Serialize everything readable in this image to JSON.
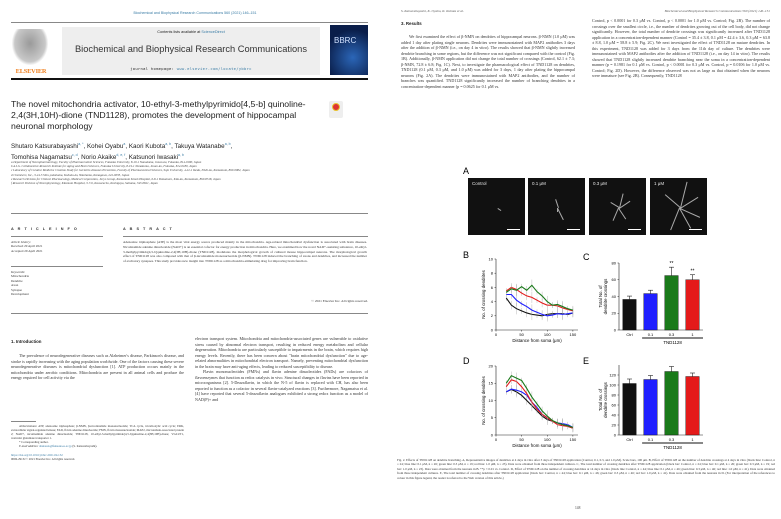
{
  "left_page": {
    "running_header": "Biochemical and Biophysical Research Communications 560 (2021) 146–151",
    "contents_prefix": "Contents lists available at ",
    "contents_link": "ScienceDirect",
    "journal_title": "Biochemical and Biophysical Research Communications",
    "homepage_prefix": "journal homepage: ",
    "homepage_link": "www.elsevier.com/locate/ybbrc",
    "publisher_logo": "ELSEVIER",
    "cover_text": "BBRC",
    "article_title": "The novel mitochondria activator, 10-ethyl-3-methylpyrimido[4,5-b] quinoline-2,4(3H,10H)-dione (TND1128), promotes the development of hippocampal neuronal morphology",
    "authors": [
      {
        "name": "Shutaro Katsurabayashi",
        "sup": "a, *"
      },
      {
        "name": "Kohei Oyabu",
        "sup": "a"
      },
      {
        "name": "Kaori Kubota",
        "sup": "a, b"
      },
      {
        "name": "Takuya Watanabe",
        "sup": "a, b"
      },
      {
        "name": "Tomohisa Nagamatsu",
        "sup": "c, d"
      },
      {
        "name": "Norio Akaike",
        "sup": "d, e, f"
      },
      {
        "name": "Katsunori Iwasaki",
        "sup": "a, b"
      }
    ],
    "affiliations": [
      "a Department of Neuropharmacology, Faculty of Pharmaceutical Sciences, Fukuoka University, 8-19-1 Nanakuma, Jonan-ku, Fukuoka, 814-0180, Japan",
      "b A.I.G. Collaborative Research Institute for Aging and Brain Sciences, Fukuoka University, 8-19-1 Nanakuma, Jonan-ku, Fukuoka, 814-0180, Japan",
      "c Laboratory of Curative Medicine Creation Study for Geriatric-diseases Prevention, Faculty of Pharmaceutical Sciences, Sojo University, 4-22-1 Ikeda, Nishi-ku, Kumamoto, 860-0082, Japan",
      "d Chemiserv, Inc., 3-24-5 Shin-yokohama, Kohoku-ku, Yokohama, Kanagawa, 222-0033, Japan",
      "e Research Division for Clinical Pharmacology, Medical Corporation, Juryo Group, Kumamoto Kinoh Hospital, 6-8-1 Yamamuro, Kita-ku, Kumamoto, 860-8518, Japan",
      "f Research Division of Neurophysiology, Kitamoto Hospital, 3-7-6, Kawaracho, Koshigaya, Saitama, 343-0821, Japan"
    ],
    "article_info_heading": "A R T I C L E  I N F O",
    "history_label": "Article history:",
    "received": "Received 29 April 2021",
    "accepted": "Accepted 29 April 2021",
    "keywords_label": "Keywords:",
    "keywords": [
      "Mitochondria",
      "Dendrite",
      "Axon",
      "Synapse",
      "Development"
    ],
    "abstract_heading": "A B S T R A C T",
    "abstract": "Adenosine triphosphate (ATP) is the most vital energy source produced mainly in the mitochondria. Age-related mitochondrial dysfunction is associated with brain diseases. Nicotinamide adenine dinucleotide (NAD+) is an essential cofactor for energy production in mitochondria. Here, we examined how the novel NAD+-assisting substance, 10-ethyl-3-methylpyrimido[4,5-b]quinoline-2,4(3H,10H)-dione (TND1128), modulates the morphological growth of cultured mouse hippocampal neurons. The morphological growth effect of TND1128 was also compared with that of β-nicotinamide mononucleotide (β-NMN). TND1128 induced the branching of axons and dendrites, and increased the number of excitatory synapses. This study provides new insight into TND1128 as a mitochondria-stimulating drug for improving brain function.",
    "copyright": "© 2021 Elsevier Inc. All rights reserved.",
    "intro_heading": "1. Introduction",
    "intro_col1": "The prevalence of neurodegenerative diseases such as Alzheimer's disease, Parkinson's disease, and stroke is rapidly increasing with the aging population worldwide. One of the factors causing these severe neurodegenerative diseases is mitochondrial dysfunction [1]. ATP production occurs mainly in the mitochondria under aerobic conditions. Mitochondria are present in all animal cells and produce the energy required for cell activity via the",
    "intro_col2a": "electron transport system. Mitochondria and mitochondria-associated genes are vulnerable to oxidative stress caused by abnormal electron transport, resulting in reduced energy metabolism and cellular degeneration. Mitochondria are particularly susceptible to impairments in the brain, which requires high energy levels. Recently, there has been concern about \"brain mitochondrial dysfunction\" due to age-related abnormalities in mitochondrial electron transport. Namely, preventing mitochondrial dysfunction in the brain may have anti-aging effects, leading to reduced susceptibility to disease.",
    "intro_col2b": "Flavin mononucleotides (FMNs) and flavin adenine dinucleotides (FADs) are cofactors of flavoenzymes that function as redox catalysts in vivo. Structural changes in flavins have been reported in microorganisms [2]. 5-Deazaflavin, in which the N-5 of flavin is replaced with CH, has also been reported to function as a cofactor in several flavin-catalyzed reactions [3]. Furthermore, Nagamatsu et al. [4] have reported that several 5-deazaflavin analogues exhibited a strong redox function as a model of NAD(P)+ and",
    "abbreviations": "Abbreviations: ATP, adenosine triphosphate; β-NMN, β-nicotinamide mononucleotide; TCA cycle, tricarboxylic acid cycle; ERK, extracellular signal-regulated kinase; FAD, flavin adenine dinucleotide; FMN, flavin mononucleotide; MAP2, microtubule-associated protein 2; NAD+, nicotinamide adenine dinucleotide; TND1128, 10-ethyl-3-methylpyrimido[4,5-b]quinoline-2,4(3H,10H)-dione; VGLUT1, vesicular glutamate transporter 1.",
    "corresponding": "* Corresponding author.",
    "email_label": "E-mail address: ",
    "email": "shutarok@fukuoka-u.ac.jp",
    "email_name": " (S. Katsurabayashi).",
    "doi": "https://doi.org/10.1016/j.bbrc.2021.04.132",
    "issn": "0006-291X/© 2021 Elsevier Inc. All rights reserved."
  },
  "right_page": {
    "running_left": "S. Katsurabayashi, K. Oyabu, K. Kubota et al.",
    "running_right": "Biochemical and Biophysical Research Communications 560 (2021) 146–151",
    "results_heading": "3. Results",
    "results_col1": "We first examined the effect of β-NMN on dendrites of hippocampal neurons. β-NMN (1.0 μM) was added 1 day after plating single neurons. Dendrites were immunostained with MAP2 antibodies 3 days after the addition of β-NMN (i.e., on day 4 in vitro). The results showed that β-NMN slightly increased dendrite branching in some regions, but the difference was not significant compared with the control (Fig. 1B). Additionally, β-NMN application did not change the total number of crossings (Control, 62.1 ± 7.3; β-NMN, 72.8 ± 6.8; Fig. 1C). Next, to investigate the pharmacological effect of TND1128 on dendrites, TND1128 (0.1 μM, 0.3 μM, and 1.0 μM) was added for 3 days, 1 day after plating the hippocampal neurons (Fig. 2A). The dendrites were immunostained with MAP2 antibodies, and the number of branches was quantified. TND1128 significantly increased the number of branching dendrites in a concentration-dependent manner (p = 0.0625 for 0.1 μM vs.",
    "results_col2": "Control, p < 0.0001 for 0.3 μM vs. Control, p < 0.0001 for 1.0 μM vs. Control; Fig. 2B). The number of crossings over the smallest circle, i.e., the number of dendrites growing out of the cell body, did not change significantly. However, the total number of dendrite crossings was significantly increased after TND1128 application in a concentration-dependent manner (Control = 35.4 ± 3.8, 0.1 μM = 42.4 ± 3.6, 0.3 μM = 63.8 ± 8.8, 1.0 μM = 58.8 ± 5.9; Fig. 2C). We next investigated the effect of TND1128 on mature dendrites. In this experiment, TND1128 was added for 3 days from the 11th day of culture. The dendrites were immunostained with MAP2 antibodies after the addition of TND1128 (i.e., on day 14 in vitro). The results showed that TND1128 slightly increased dendrite branching near the soma in a concentration-dependent manner (p = 0.1981 for 0.1 μM vs. Control, p < 0.0001 for 0.3 μM vs. Control, p = 0.0106 for 1.0 μM vs. Control; Fig. 2D). However, the difference observed was not as large as that obtained when the neurons were immature (see Fig. 2B). Consequently, TND1128",
    "panel_labels": [
      "A",
      "B",
      "C",
      "D",
      "E"
    ],
    "micrograph_labels": [
      "Control",
      "0.1 μM",
      "0.3 μM",
      "1 μM"
    ],
    "caption": "Fig. 2. Effects of TND1128 on dendrite branching. A, Representative images of dendrites at 4 days in vitro after 3 days of TND1128 application (Control, 0.1, 0.3, and 1.0 μM). Scale bars, 100 μm. B, Effect of TND1128 on the number of dendrite crossings at 4 days in vitro (black line: Control, n = 24; blue line: 0.1 μM, n = 26; green line: 0.3 μM, n = 19; red line: 1.0 μM, n = 23). Data were obtained from three independent cultures. C, The total number of crossing dendrites after TND1128 application (black bar: Control, n = 24; blue bar: 0.1 μM, n = 26; green bar: 0.3 μM, n = 19; red bar: 1.0 μM, n = 23). Data were obtained from the neurons in B. **p < 0.01 vs. Control. D, Effect of TND1128 on the number of crossing dendrites at 14 days in vitro (black line: Control, n = 44; blue line: 0.1 μM, n = 46; green line: 0.3 μM, n = 46; red line: 1.0 μM, n = 41). Data were obtained from three independent cultures. E, The total number of crossing dendrites after TND1128 application (black bar: Control, n = 44; blue bar: 0.1 μM, n = 46; green bar: 0.3 μM, n = 46; red bar: 1.0 μM, n = 41). Data were obtained from the neurons in D. (For interpretation of the references to colour in this figure legend, the reader is referred to the Web version of this article.)",
    "page_number": "148"
  },
  "colors": {
    "ctrl": "#111111",
    "c01": "#1f1fff",
    "c03": "#1a7a1a",
    "c1": "#e41a1a",
    "link": "#3a7ca5",
    "elsevier": "#f07f1d"
  },
  "chart_data": [
    {
      "panel": "B",
      "type": "line",
      "xlabel": "Distance from soma (μm)",
      "ylabel": "No. of crossing dendrites",
      "xlim": [
        0,
        160
      ],
      "ylim": [
        0,
        10
      ],
      "xticks": [
        0,
        50,
        100,
        150
      ],
      "yticks": [
        0,
        2,
        4,
        6,
        8,
        10
      ],
      "x": [
        20,
        30,
        40,
        50,
        60,
        70,
        80,
        90,
        100,
        110,
        120,
        130,
        140,
        150
      ],
      "series": [
        {
          "name": "Control",
          "color": "#111111",
          "values": [
            4.5,
            3.5,
            3.0,
            2.7,
            2.4,
            2.2,
            2.1,
            2.0,
            2.2,
            2.3,
            2.3,
            2.3,
            2.2,
            2.4
          ]
        },
        {
          "name": "0.1 μM",
          "color": "#1f1fff",
          "values": [
            5.0,
            5.0,
            4.2,
            3.7,
            3.3,
            2.8,
            2.5,
            2.2,
            2.0,
            2.1,
            2.3,
            2.2,
            2.3,
            2.4
          ]
        },
        {
          "name": "1 μM",
          "color": "#e41a1a",
          "values": [
            5.5,
            6.0,
            5.7,
            5.2,
            4.8,
            4.6,
            4.2,
            3.8,
            3.5,
            3.5,
            3.4,
            3.1,
            2.9,
            2.7
          ]
        },
        {
          "name": "0.3 μM",
          "color": "#1a7a1a",
          "values": [
            5.3,
            5.8,
            5.6,
            6.1,
            5.6,
            6.3,
            5.4,
            4.8,
            4.0,
            3.5,
            3.6,
            3.3,
            3.0,
            2.8
          ]
        }
      ]
    },
    {
      "panel": "C",
      "type": "bar",
      "ylabel": "Total No. of dendrite crossings",
      "group_label": "TND1128",
      "categories": [
        "Ctrl",
        "0.1",
        "0.3",
        "1"
      ],
      "values": [
        36.5,
        43.5,
        65,
        60
      ],
      "errors": [
        4,
        4,
        10,
        6
      ],
      "significance": [
        "",
        "",
        "**",
        "**"
      ],
      "ylim": [
        0,
        80
      ],
      "yticks": [
        0,
        20,
        40,
        60,
        80
      ],
      "colors": [
        "#111111",
        "#1f1fff",
        "#1a7a1a",
        "#e41a1a"
      ]
    },
    {
      "panel": "D",
      "type": "line",
      "xlabel": "Distance from soma (μm)",
      "ylabel": "No. of crossing dendrites",
      "xlim": [
        0,
        160
      ],
      "ylim": [
        0,
        20
      ],
      "xticks": [
        0,
        50,
        100,
        150
      ],
      "yticks": [
        0,
        5,
        10,
        15,
        20
      ],
      "x": [
        20,
        30,
        40,
        50,
        60,
        70,
        80,
        90,
        100,
        110,
        120,
        130,
        140,
        150
      ],
      "series": [
        {
          "name": "Control",
          "color": "#111111",
          "values": [
            12.5,
            13.2,
            12.5,
            11.5,
            10,
            8.5,
            7,
            5.5,
            4.5,
            4,
            3.5,
            3,
            2.5,
            2
          ]
        },
        {
          "name": "0.1 μM",
          "color": "#1f1fff",
          "values": [
            12.5,
            13.3,
            13,
            12.5,
            11.5,
            9.5,
            8,
            6,
            5,
            4,
            3.5,
            3.3,
            3,
            2.2
          ]
        },
        {
          "name": "1 μM",
          "color": "#e41a1a",
          "values": [
            14,
            16,
            15.5,
            14,
            12,
            9.5,
            7.5,
            6,
            5,
            4,
            3,
            2.7,
            2.5,
            2
          ]
        },
        {
          "name": "0.3 μM",
          "color": "#1a7a1a",
          "values": [
            15,
            17.2,
            16.5,
            15.8,
            13.5,
            11,
            9,
            7,
            5.5,
            4.2,
            3.5,
            3,
            2.7,
            2.2
          ]
        }
      ]
    },
    {
      "panel": "E",
      "type": "bar",
      "ylabel": "Total No. of dendrite crossings",
      "group_label": "TND1128",
      "categories": [
        "Ctrl",
        "0.1",
        "0.3",
        "1"
      ],
      "values": [
        103,
        111,
        127,
        117
      ],
      "errors": [
        9,
        8,
        10,
        7
      ],
      "significance": [
        "",
        "",
        "",
        ""
      ],
      "ylim": [
        0,
        140
      ],
      "yticks": [
        0,
        20,
        40,
        60,
        80,
        100,
        120
      ],
      "colors": [
        "#111111",
        "#1f1fff",
        "#1a7a1a",
        "#e41a1a"
      ]
    }
  ]
}
